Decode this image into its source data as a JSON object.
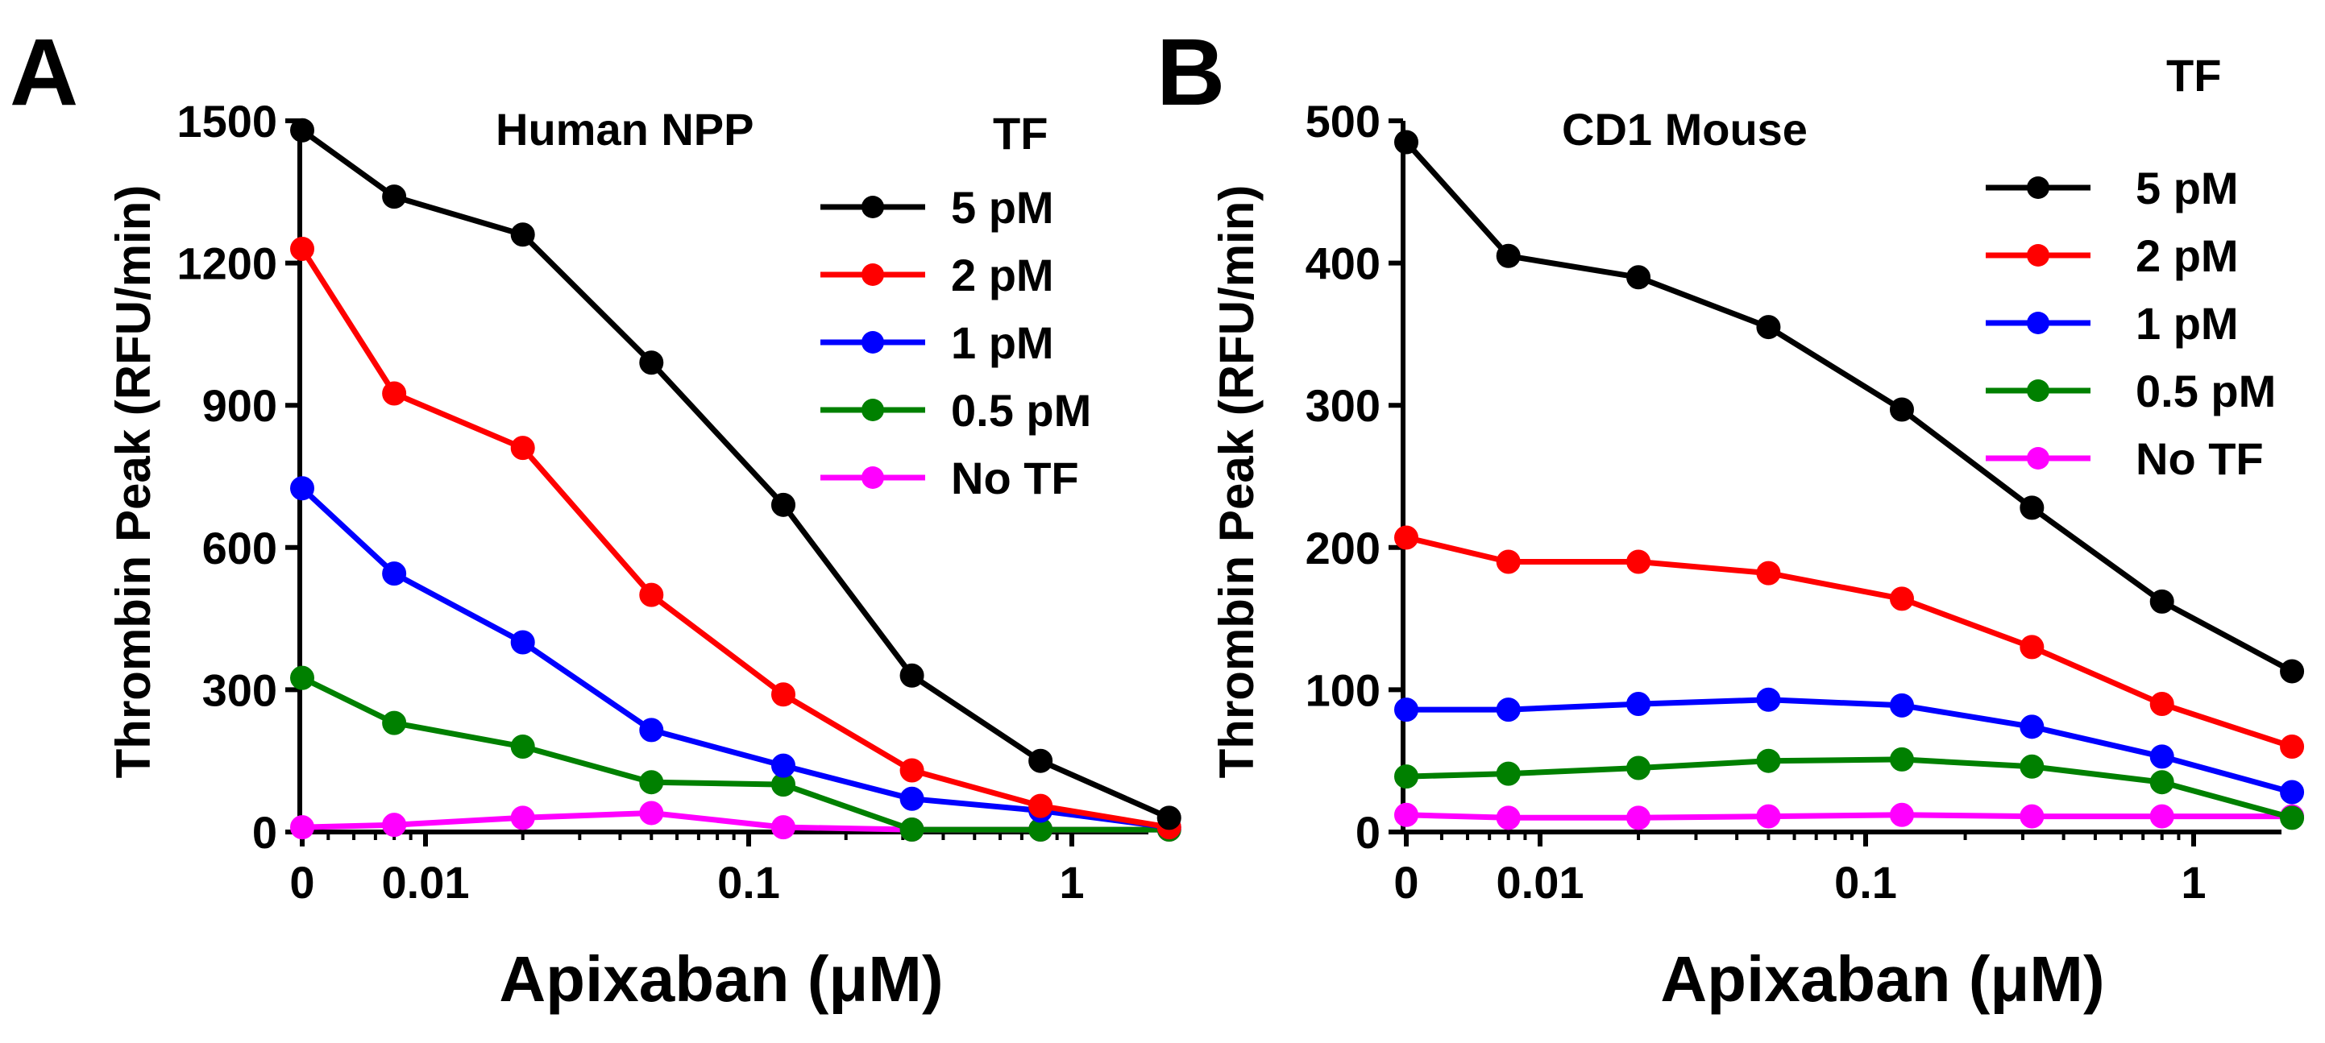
{
  "chart_data": [
    {
      "panel_label": "A",
      "type": "line",
      "title": "Human NPP",
      "xlabel": "Apixaban (μM)",
      "ylabel": "Thrombin Peak (RFU/min)",
      "x_scale": "log-with-zero",
      "x_tick_labels": [
        "0",
        "0.01",
        "0.1",
        "1"
      ],
      "y_tick_values": [
        0,
        300,
        600,
        900,
        1200,
        1500
      ],
      "y_tick_labels": [
        "0",
        "300",
        "600",
        "900",
        "1200",
        "1500"
      ],
      "ylim": [
        0,
        1500
      ],
      "x": [
        0,
        0.008,
        0.02,
        0.05,
        0.128,
        0.32,
        0.8,
        2.0
      ],
      "legend_title": "TF",
      "legend_position": "top-right",
      "series": [
        {
          "name": "5 pM",
          "color": "#000000",
          "values": [
            1480,
            1340,
            1260,
            990,
            690,
            330,
            150,
            30
          ]
        },
        {
          "name": "2 pM",
          "color": "#ff0000",
          "values": [
            1230,
            925,
            810,
            500,
            290,
            130,
            55,
            10
          ]
        },
        {
          "name": "1 pM",
          "color": "#0000ff",
          "values": [
            725,
            545,
            400,
            215,
            140,
            70,
            45,
            10
          ]
        },
        {
          "name": "0.5 pM",
          "color": "#008000",
          "values": [
            325,
            230,
            180,
            105,
            100,
            5,
            5,
            5
          ]
        },
        {
          "name": "No TF",
          "color": "#ff00ff",
          "values": [
            10,
            15,
            30,
            40,
            10,
            5,
            5,
            5
          ]
        }
      ]
    },
    {
      "panel_label": "B",
      "type": "line",
      "title": "CD1 Mouse",
      "xlabel": "Apixaban (μM)",
      "ylabel": "Thrombin Peak (RFU/min)",
      "x_scale": "log-with-zero",
      "x_tick_labels": [
        "0",
        "0.01",
        "0.1",
        "1"
      ],
      "y_tick_values": [
        0,
        100,
        200,
        300,
        400,
        500
      ],
      "y_tick_labels": [
        "0",
        "100",
        "200",
        "300",
        "400",
        "500"
      ],
      "ylim": [
        0,
        500
      ],
      "x": [
        0,
        0.008,
        0.02,
        0.05,
        0.128,
        0.32,
        0.8,
        2.0
      ],
      "legend_title": "TF",
      "legend_position": "top-right",
      "series": [
        {
          "name": "5 pM",
          "color": "#000000",
          "values": [
            485,
            405,
            390,
            355,
            297,
            228,
            162,
            113
          ]
        },
        {
          "name": "2 pM",
          "color": "#ff0000",
          "values": [
            207,
            190,
            190,
            182,
            164,
            130,
            90,
            60
          ]
        },
        {
          "name": "1 pM",
          "color": "#0000ff",
          "values": [
            86,
            86,
            90,
            93,
            89,
            74,
            53,
            28
          ]
        },
        {
          "name": "0.5 pM",
          "color": "#008000",
          "values": [
            39,
            41,
            45,
            50,
            51,
            46,
            35,
            10
          ]
        },
        {
          "name": "No TF",
          "color": "#ff00ff",
          "values": [
            12,
            10,
            10,
            11,
            12,
            11,
            11,
            11
          ]
        }
      ]
    }
  ]
}
